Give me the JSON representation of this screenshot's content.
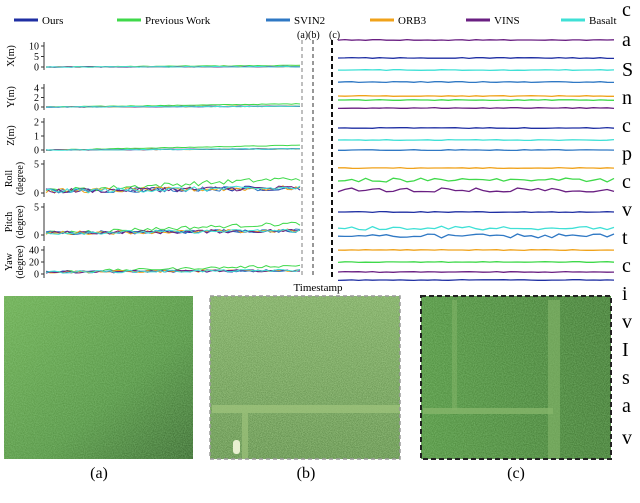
{
  "chart_data": {
    "type": "line",
    "xlabel": "Timestamp",
    "legend": {
      "placement": "top",
      "entries": [
        {
          "name": "Ours",
          "color": "#1f2fa3"
        },
        {
          "name": "Previous Work",
          "color": "#3fd94a"
        },
        {
          "name": "SVIN2",
          "color": "#2f78c4"
        },
        {
          "name": "ORB3",
          "color": "#f0a21a"
        },
        {
          "name": "VINS",
          "color": "#6a1f82"
        },
        {
          "name": "Basalt",
          "color": "#3fe0d6"
        }
      ]
    },
    "event_markers": [
      "(a)",
      "(b)",
      "(c)"
    ],
    "subplots": [
      {
        "ylabel": "X(m)",
        "ticks": [
          "10",
          "5",
          "0"
        ]
      },
      {
        "ylabel": "Y(m)",
        "ticks": [
          "4",
          "2",
          "0"
        ]
      },
      {
        "ylabel": "Z(m)",
        "ticks": [
          "2",
          "1",
          "0"
        ]
      },
      {
        "ylabel": "Roll (degree)",
        "ticks": [
          "5",
          "0"
        ]
      },
      {
        "ylabel": "Pitch (degree)",
        "ticks": [
          "5",
          "0"
        ]
      },
      {
        "ylabel": "Yaw (degree)",
        "ticks": [
          "40",
          "20",
          "0"
        ]
      }
    ],
    "grid": false
  },
  "panels": [
    {
      "caption": "(a)",
      "border": "none"
    },
    {
      "caption": "(b)",
      "border": "dashed-gray"
    },
    {
      "caption": "(c)",
      "border": "dashed-black"
    }
  ],
  "side_text": [
    "c",
    "a",
    "S",
    "n",
    "c",
    "p",
    "c",
    "v",
    "t",
    "c",
    "i",
    "v",
    "I",
    "s",
    "a",
    "v"
  ]
}
